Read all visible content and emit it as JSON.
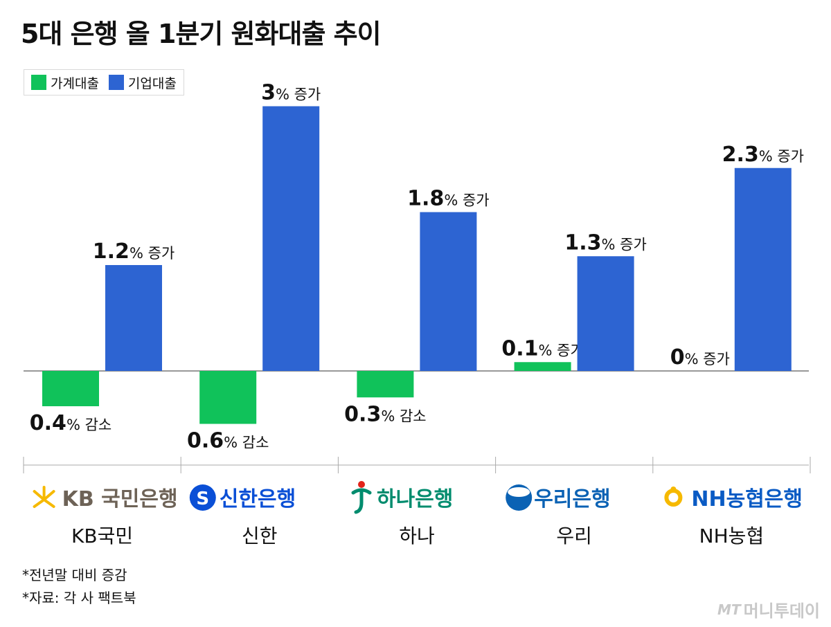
{
  "title": "5대 은행 올 1분기 원화대출 추이",
  "colors": {
    "household": "#10c25a",
    "corporate": "#2d64d2",
    "axis": "#777777"
  },
  "chart_data": {
    "type": "bar",
    "title": "5대 은행 올 1분기 원화대출 추이",
    "unit": "%",
    "categories": [
      "KB국민",
      "신한",
      "하나",
      "우리",
      "NH농협"
    ],
    "series": [
      {
        "name": "가계대출",
        "values": [
          -0.4,
          -0.6,
          -0.3,
          0.1,
          0
        ],
        "labels": [
          "0.4% 감소",
          "0.6% 감소",
          "0.3% 감소",
          "0.1% 증가",
          "0% 증가"
        ]
      },
      {
        "name": "기업대출",
        "values": [
          1.2,
          3,
          1.8,
          1.3,
          2.3
        ],
        "labels": [
          "1.2% 증가",
          "3% 증가",
          "1.8% 증가",
          "1.3% 증가",
          "2.3% 증가"
        ]
      }
    ],
    "legend": "top-left"
  },
  "logos": [
    {
      "text": "KB 국민은행",
      "icon": "kb-star-icon",
      "color": "#6d6256",
      "icon_color": "#f6b900"
    },
    {
      "text": "신한은행",
      "icon": "shinhan-s-icon",
      "color": "#0a4fd6",
      "icon_color": "#0a4fd6"
    },
    {
      "text": "하나은행",
      "icon": "hana-person-icon",
      "color": "#008c6e",
      "icon_color": "#008c6e"
    },
    {
      "text": "우리은행",
      "icon": "woori-sun-icon",
      "color": "#0b62b4",
      "icon_color": "#0b62b4"
    },
    {
      "text": "NH농협은행",
      "icon": "nh-seal-icon",
      "color": "#0a5bc4",
      "icon_color": "#f6b900"
    }
  ],
  "footnotes": [
    "*전년말 대비 증감",
    "*자료: 각 사 팩트북"
  ],
  "watermark": {
    "mark": "MT",
    "text": "머니투데이"
  }
}
